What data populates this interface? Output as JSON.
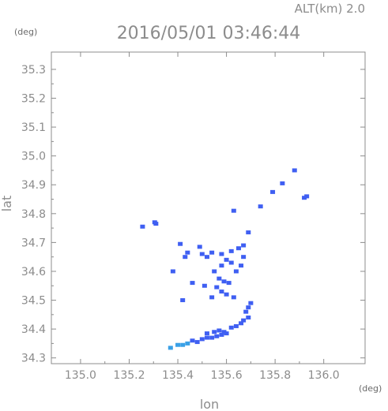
{
  "chart_data": {
    "type": "scatter",
    "title": "2016/05/01 03:46:44",
    "subtitle": "ALT(km) 2.0",
    "xlabel": "lon",
    "ylabel": "lat",
    "x_unit": "(deg)",
    "y_unit": "(deg)",
    "xlim": [
      134.88,
      136.17
    ],
    "ylim": [
      34.28,
      35.36
    ],
    "xticks": [
      "135.0",
      "135.2",
      "135.4",
      "135.6",
      "135.8",
      "136.0"
    ],
    "yticks": [
      "34.3",
      "34.4",
      "34.5",
      "34.6",
      "34.7",
      "34.8",
      "34.9",
      "35.0",
      "35.1",
      "35.2",
      "35.3"
    ],
    "grid": false,
    "colors": {
      "axis": "#8c8c8c",
      "echo": "#3f5ff2",
      "echo_light": "#3aa0e6"
    },
    "points": [
      {
        "lon": 135.255,
        "lat": 34.755
      },
      {
        "lon": 135.31,
        "lat": 34.765
      },
      {
        "lon": 135.305,
        "lat": 34.77
      },
      {
        "lon": 135.88,
        "lat": 34.95
      },
      {
        "lon": 135.79,
        "lat": 34.875
      },
      {
        "lon": 135.83,
        "lat": 34.905
      },
      {
        "lon": 135.92,
        "lat": 34.855
      },
      {
        "lon": 135.93,
        "lat": 34.86
      },
      {
        "lon": 135.69,
        "lat": 34.735
      },
      {
        "lon": 135.63,
        "lat": 34.81
      },
      {
        "lon": 135.74,
        "lat": 34.825
      },
      {
        "lon": 135.41,
        "lat": 34.695
      },
      {
        "lon": 135.44,
        "lat": 34.665
      },
      {
        "lon": 135.43,
        "lat": 34.65
      },
      {
        "lon": 135.49,
        "lat": 34.685
      },
      {
        "lon": 135.5,
        "lat": 34.66
      },
      {
        "lon": 135.52,
        "lat": 34.65
      },
      {
        "lon": 135.54,
        "lat": 34.665
      },
      {
        "lon": 135.58,
        "lat": 34.66
      },
      {
        "lon": 135.6,
        "lat": 34.64
      },
      {
        "lon": 135.62,
        "lat": 34.67
      },
      {
        "lon": 135.65,
        "lat": 34.68
      },
      {
        "lon": 135.67,
        "lat": 34.69
      },
      {
        "lon": 135.67,
        "lat": 34.65
      },
      {
        "lon": 135.66,
        "lat": 34.62
      },
      {
        "lon": 135.64,
        "lat": 34.6
      },
      {
        "lon": 135.62,
        "lat": 34.63
      },
      {
        "lon": 135.58,
        "lat": 34.62
      },
      {
        "lon": 135.55,
        "lat": 34.6
      },
      {
        "lon": 135.57,
        "lat": 34.575
      },
      {
        "lon": 135.59,
        "lat": 34.565
      },
      {
        "lon": 135.61,
        "lat": 34.56
      },
      {
        "lon": 135.56,
        "lat": 34.545
      },
      {
        "lon": 135.58,
        "lat": 34.53
      },
      {
        "lon": 135.6,
        "lat": 34.52
      },
      {
        "lon": 135.63,
        "lat": 34.51
      },
      {
        "lon": 135.54,
        "lat": 34.51
      },
      {
        "lon": 135.51,
        "lat": 34.55
      },
      {
        "lon": 135.42,
        "lat": 34.5
      },
      {
        "lon": 135.46,
        "lat": 34.56
      },
      {
        "lon": 135.38,
        "lat": 34.6
      },
      {
        "lon": 135.7,
        "lat": 34.49
      },
      {
        "lon": 135.69,
        "lat": 34.475
      },
      {
        "lon": 135.68,
        "lat": 34.46
      },
      {
        "lon": 135.69,
        "lat": 34.44
      },
      {
        "lon": 135.67,
        "lat": 34.43
      },
      {
        "lon": 135.66,
        "lat": 34.42
      },
      {
        "lon": 135.64,
        "lat": 34.41
      },
      {
        "lon": 135.62,
        "lat": 34.405
      },
      {
        "lon": 135.6,
        "lat": 34.385
      },
      {
        "lon": 135.58,
        "lat": 34.38
      },
      {
        "lon": 135.56,
        "lat": 34.375
      },
      {
        "lon": 135.54,
        "lat": 34.37
      },
      {
        "lon": 135.52,
        "lat": 34.37
      },
      {
        "lon": 135.5,
        "lat": 34.365
      },
      {
        "lon": 135.48,
        "lat": 34.355
      },
      {
        "lon": 135.46,
        "lat": 34.36
      },
      {
        "lon": 135.44,
        "lat": 34.35
      },
      {
        "lon": 135.42,
        "lat": 34.345
      },
      {
        "lon": 135.4,
        "lat": 34.345
      },
      {
        "lon": 135.37,
        "lat": 34.335
      },
      {
        "lon": 135.55,
        "lat": 34.39
      },
      {
        "lon": 135.57,
        "lat": 34.395
      },
      {
        "lon": 135.59,
        "lat": 34.39
      },
      {
        "lon": 135.52,
        "lat": 34.385
      }
    ]
  }
}
